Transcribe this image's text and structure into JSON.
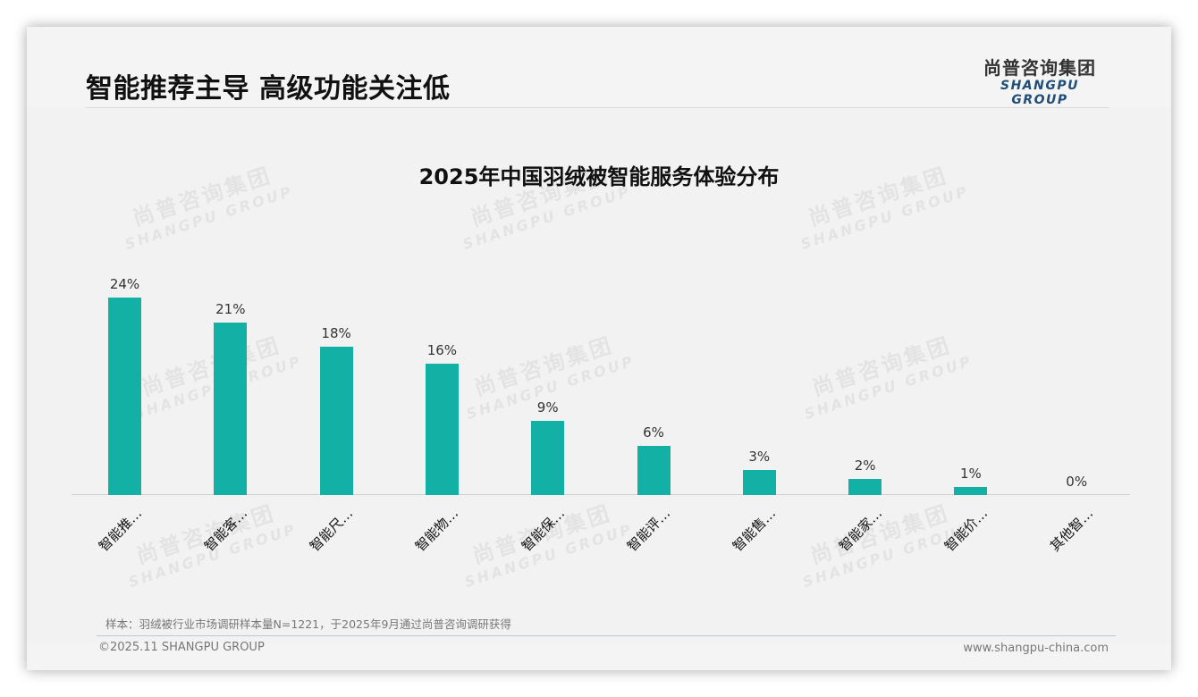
{
  "header": {
    "title": "智能推荐主导 高级功能关注低",
    "logo_cn": "尚普咨询集团",
    "logo_en": "SHANGPU GROUP"
  },
  "watermark": {
    "cn": "尚普咨询集团",
    "en": "SHANGPU GROUP"
  },
  "chart_data": {
    "type": "bar",
    "title": "2025年中国羽绒被智能服务体验分布",
    "xlabel": "",
    "ylabel": "",
    "categories": [
      "智能推…",
      "智能客…",
      "智能尺…",
      "智能物…",
      "智能保…",
      "智能评…",
      "智能售…",
      "智能家…",
      "智能价…",
      "其他智…"
    ],
    "values": [
      24,
      21,
      18,
      16,
      9,
      6,
      3,
      2,
      1,
      0
    ],
    "value_labels": [
      "24%",
      "21%",
      "18%",
      "16%",
      "9%",
      "6%",
      "3%",
      "2%",
      "1%",
      "0%"
    ],
    "unit": "%",
    "ylim": [
      0,
      24
    ],
    "grid": false,
    "legend": "none",
    "bar_color": "#12b0a5"
  },
  "footer": {
    "note": "样本：羽绒被行业市场调研样本量N=1221，于2025年9月通过尚普咨询调研获得",
    "copyright": "©2025.11 SHANGPU GROUP",
    "website": "www.shangpu-china.com"
  }
}
